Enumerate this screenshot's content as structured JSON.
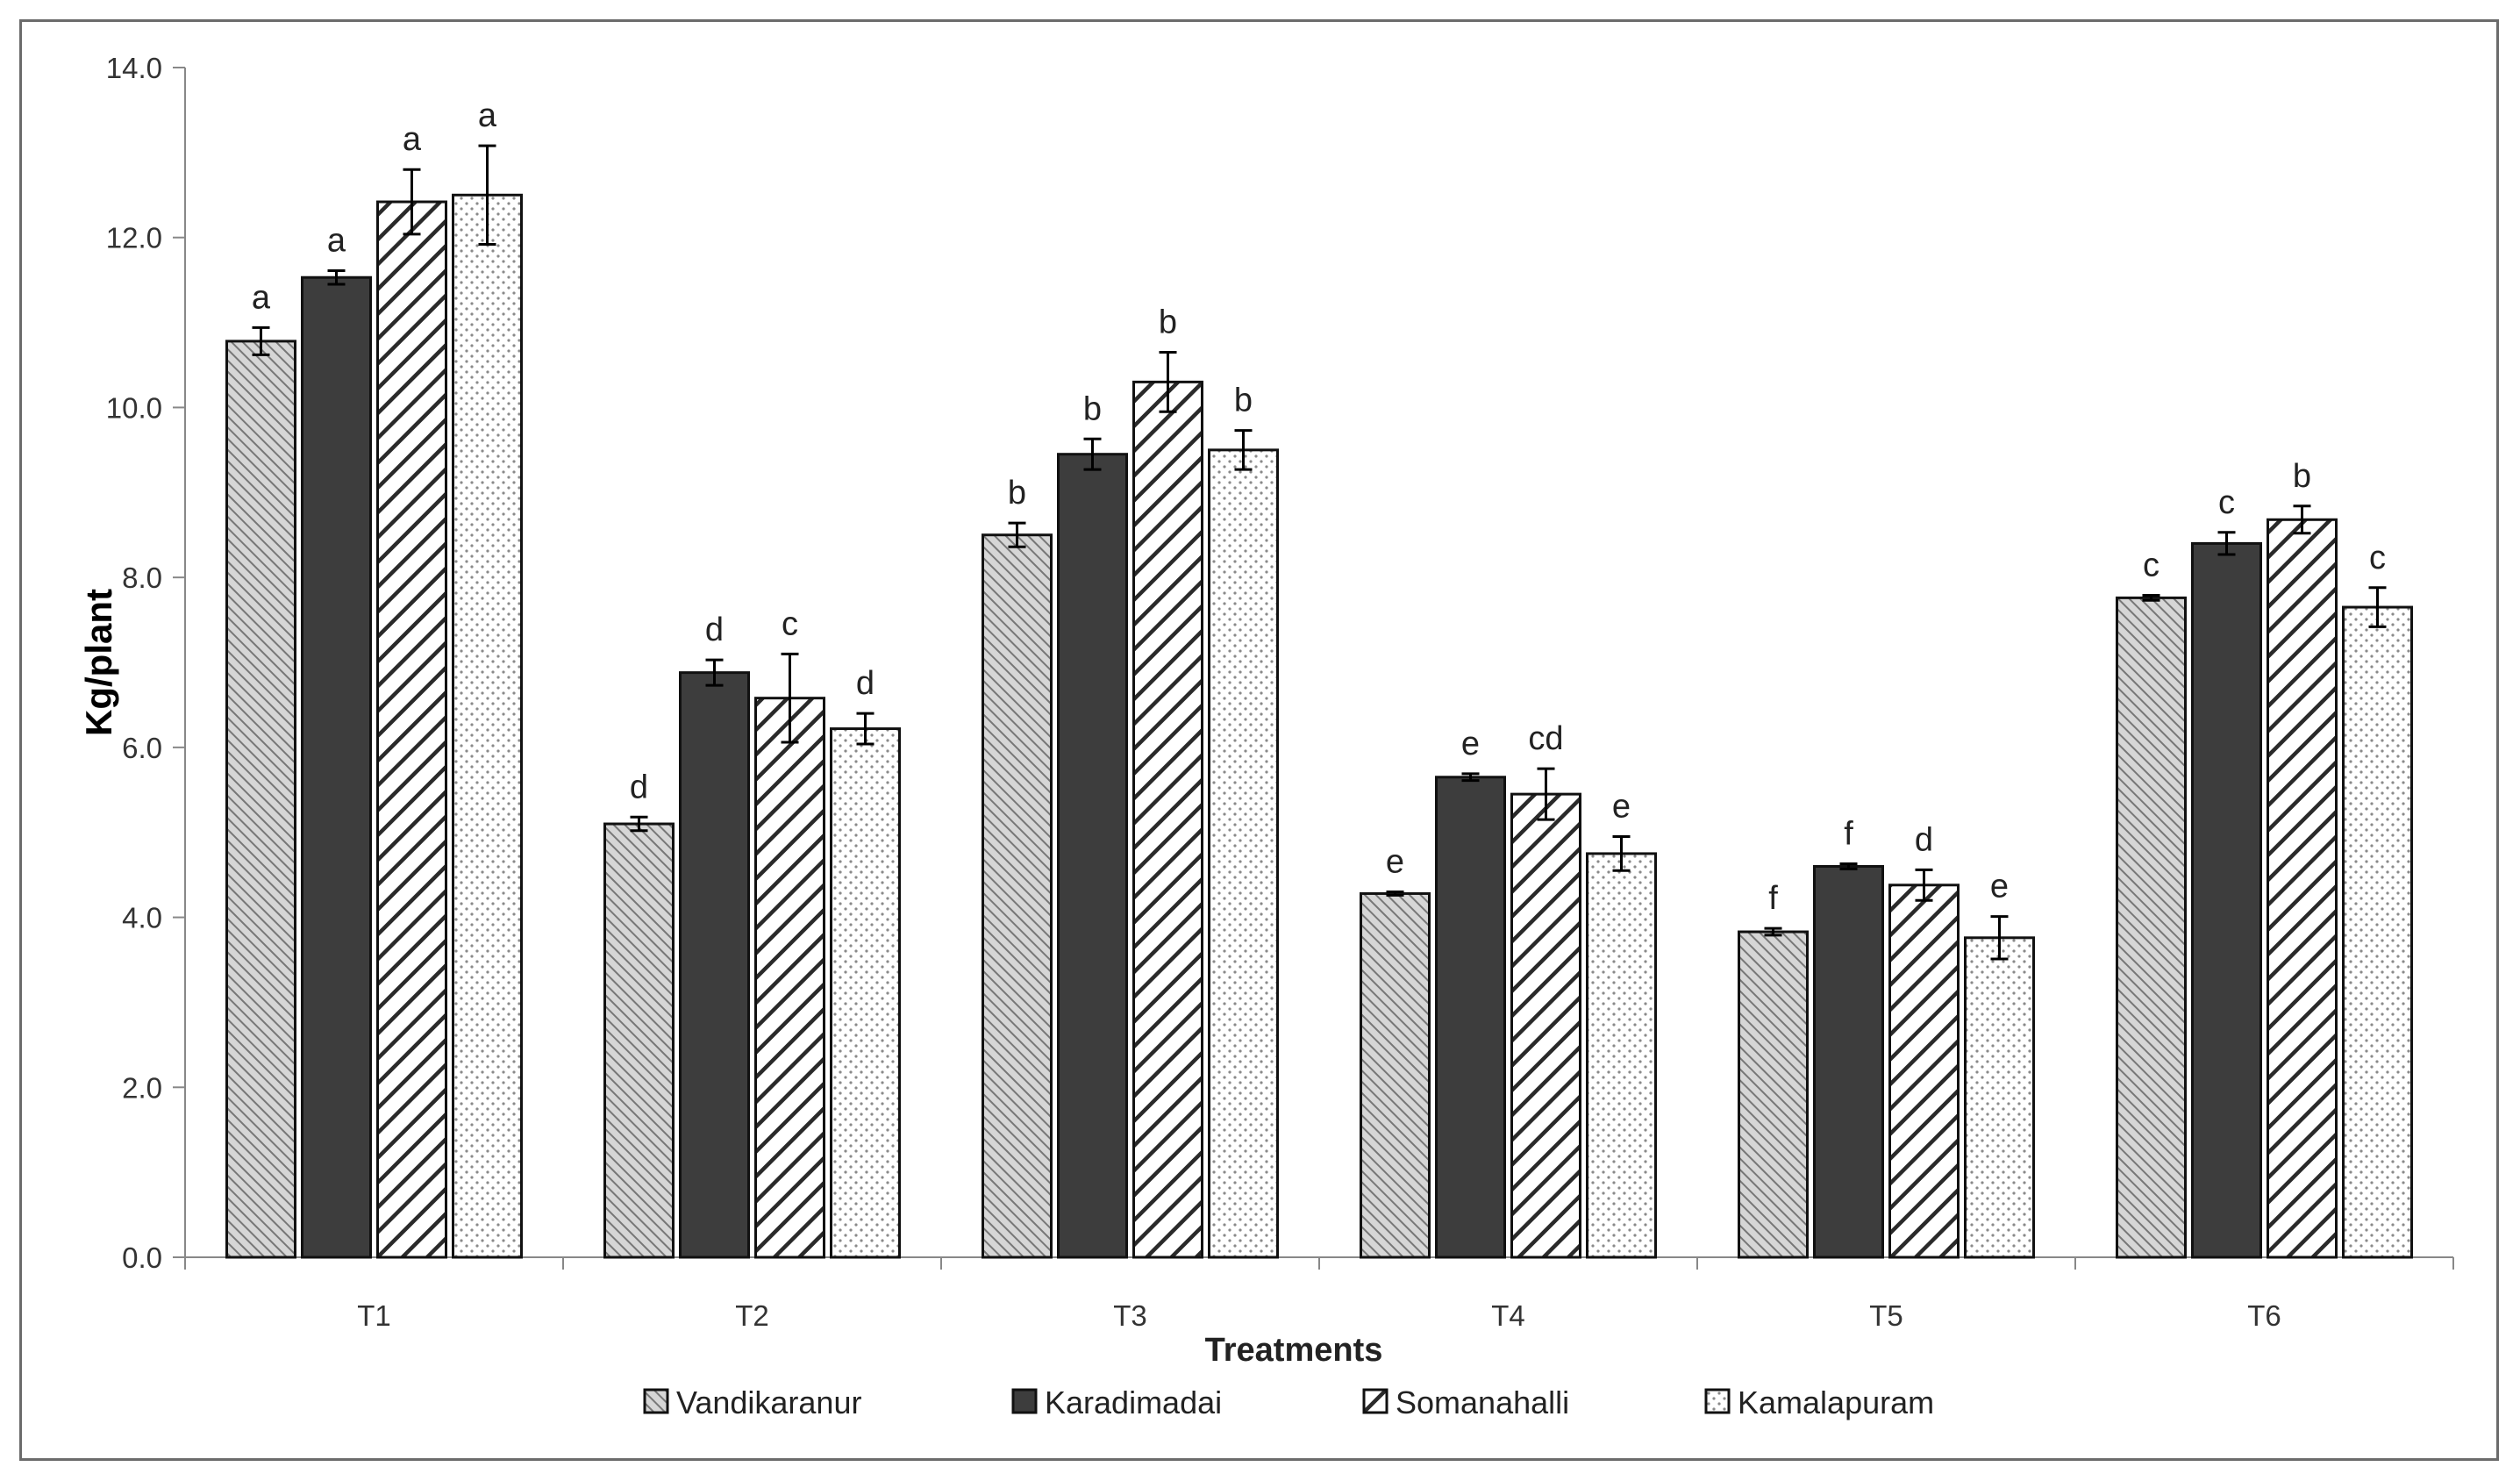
{
  "chart_data": {
    "type": "bar",
    "title": "",
    "xlabel": "Treatments",
    "ylabel": "Kg/plant",
    "ylim": [
      0,
      14
    ],
    "ytick_step": 2,
    "ytick_labels": [
      "0.0",
      "2.0",
      "4.0",
      "6.0",
      "8.0",
      "10.0",
      "12.0",
      "14.0"
    ],
    "grid": false,
    "legend_position": "bottom",
    "categories": [
      "T1",
      "T2",
      "T3",
      "T4",
      "T5",
      "T6"
    ],
    "series": [
      {
        "name": "Vandikaranur",
        "pattern": "dense-diagonal-hatch",
        "values": [
          10.78,
          5.1,
          8.5,
          4.28,
          3.83,
          7.76
        ],
        "errors": [
          0.16,
          0.08,
          0.14,
          0.02,
          0.04,
          0.03
        ],
        "letters": [
          "a",
          "d",
          "b",
          "e",
          "f",
          "c"
        ]
      },
      {
        "name": "Karadimadai",
        "pattern": "solid-dark",
        "values": [
          11.53,
          6.88,
          9.45,
          5.65,
          4.6,
          8.4
        ],
        "errors": [
          0.08,
          0.15,
          0.18,
          0.04,
          0.03,
          0.13
        ],
        "letters": [
          "a",
          "d",
          "b",
          "e",
          "f",
          "c"
        ]
      },
      {
        "name": "Somanahalli",
        "pattern": "wide-diagonal-stripes",
        "values": [
          12.42,
          6.58,
          10.3,
          5.45,
          4.38,
          8.68
        ],
        "errors": [
          0.38,
          0.52,
          0.35,
          0.3,
          0.18,
          0.16
        ],
        "letters": [
          "a",
          "c",
          "b",
          "cd",
          "d",
          "b"
        ]
      },
      {
        "name": "Kamalapuram",
        "pattern": "dotted",
        "values": [
          12.5,
          6.22,
          9.5,
          4.75,
          3.76,
          7.65
        ],
        "errors": [
          0.58,
          0.18,
          0.23,
          0.2,
          0.25,
          0.23
        ],
        "letters": [
          "a",
          "d",
          "b",
          "e",
          "e",
          "c"
        ]
      }
    ]
  }
}
